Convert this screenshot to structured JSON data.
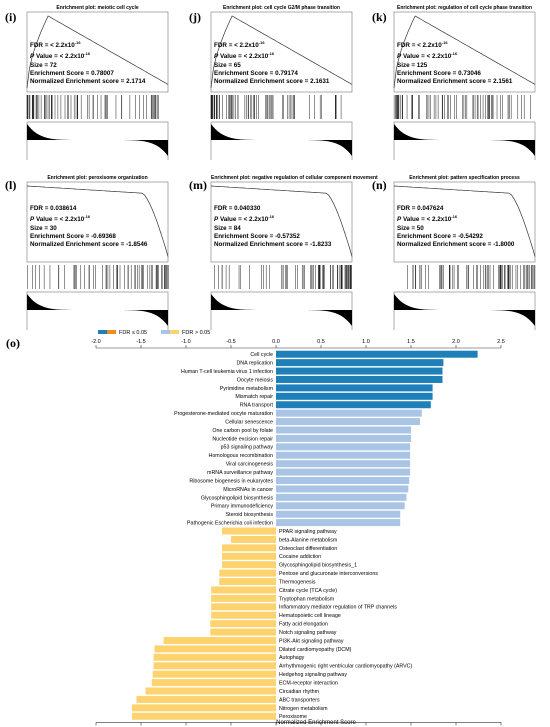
{
  "panels": [
    {
      "label": "(i)",
      "title": "Enrichment plot: meiotic cell cycle",
      "fdr": "< 2.2x10",
      "fdr_exp": "-16",
      "pv": "< 2.2x10",
      "pv_exp": "-16",
      "size": "72",
      "es": "0.78007",
      "nes": "2.1714",
      "dir": "pos"
    },
    {
      "label": "(j)",
      "title": "Enrichment plot: cell cycle G2/M phase transition",
      "fdr": "< 2.2x10",
      "fdr_exp": "-16",
      "pv": "< 2.2x10",
      "pv_exp": "-16",
      "size": "65",
      "es": "0.79174",
      "nes": "2.1631",
      "dir": "pos"
    },
    {
      "label": "(k)",
      "title": "Enrichment plot: regulation of cell cycle phase transition",
      "fdr": "< 2.2x10",
      "fdr_exp": "-16",
      "pv": "< 2.2x10",
      "pv_exp": "-16",
      "size": "125",
      "es": "0.73046",
      "nes": "2.1561",
      "dir": "pos"
    },
    {
      "label": "(l)",
      "title": "Enrichment plot: peroxisome organization",
      "fdr": "0.038614",
      "fdr_exp": "",
      "pv": "< 2.2x10",
      "pv_exp": "-16",
      "size": "30",
      "es": "-0.69368",
      "nes": "-1.8546",
      "dir": "neg"
    },
    {
      "label": "(m)",
      "title": "Enrichment plot: negative regulation of cellular component movement",
      "fdr": "0.040330",
      "fdr_exp": "",
      "pv": "< 2.2x10",
      "pv_exp": "-16",
      "size": "84",
      "es": "-0.57352",
      "nes": "-1.8233",
      "dir": "neg"
    },
    {
      "label": "(n)",
      "title": "Enrichment plot: pattern specification process",
      "fdr": "0.047624",
      "fdr_exp": "",
      "pv": "< 2.2x10",
      "pv_exp": "-16",
      "size": "50",
      "es": "-0.54292",
      "nes": "-1.8000",
      "dir": "neg"
    }
  ],
  "stat_labels": {
    "fdr": "FDR = ",
    "pv": " Value = ",
    "pv_italic": "P",
    "size": "Size = ",
    "es": "Enrichment Score = ",
    "nes": "Normalized Enrichment score = "
  },
  "chart_label": "(o)",
  "colors": {
    "up_dark": "#1f7fb8",
    "up_light": "#a9c4e4",
    "down_dark": "#f28a1c",
    "down_light": "#fcd36e"
  },
  "chart_data": {
    "type": "bar",
    "orientation": "horizontal",
    "xlabel": "Normalized Enrichment Score",
    "xlim": [
      -2.0,
      2.5
    ],
    "xticks": [
      "-2.0",
      "-1.5",
      "-1.0",
      "-0.5",
      "0.0",
      "0.5",
      "1.0",
      "1.5",
      "2.0",
      "2.5"
    ],
    "legend": [
      {
        "name": "FDR ≤ 0.05",
        "swatches": [
          "#1f7fb8",
          "#f28a1c"
        ]
      },
      {
        "name": "FDR > 0.05",
        "swatches": [
          "#a9c4e4",
          "#fcd36e"
        ]
      }
    ],
    "legend_position": "top-left",
    "categories": [
      "Cell cycle",
      "DNA replication",
      "Human T-cell leukemia virus 1 infection",
      "Oocyte meiosis",
      "Pyrimidine metabolism",
      "Mismatch repair",
      "RNA transport",
      "Progesterone-mediated oocyte maturation",
      "Cellular senescence",
      "One carbon pool by folate",
      "Nucleotide excision repair",
      "p53 signaling pathway",
      "Homologous recombination",
      "Viral carcinogenesis",
      "mRNA surveillance pathway",
      "Ribosome biogenesis in eukaryotes",
      "MicroRNAs in cancer",
      "Glycosphingolipid biosynthesis",
      "Primary immunodeficiency",
      "Steroid biosynthesis",
      "Pathogenic Escherichia coli infection",
      "PPAR signaling pathway",
      "beta-Alanine metabolism",
      "Osteoclast differentiation",
      "Cocaine addiction",
      "Glycosphingolipid biosynthesis_1",
      "Pentose and glucuronate interconversions",
      "Thermogenesis",
      "Citrate cycle (TCA cycle)",
      "Tryptophan metabolism",
      "Inflammatory mediator regulation of TRP channels",
      "Hematopoietic cell lineage",
      "Fatty acid elongation",
      "Notch signaling pathway",
      "PI3K-Akt signaling pathway",
      "Dilated cardiomyopathy (DCM)",
      "Autophagy",
      "Arrhythmogenic right ventricular cardiomyopathy (ARVC)",
      "Hedgehog signaling pathway",
      "ECM-receptor interaction",
      "Circadian rhythm",
      "ABC transporters",
      "Nitrogen metabolism",
      "Peroxisome"
    ],
    "values": [
      2.24,
      1.86,
      1.85,
      1.85,
      1.74,
      1.74,
      1.72,
      1.62,
      1.6,
      1.5,
      1.5,
      1.49,
      1.49,
      1.49,
      1.49,
      1.48,
      1.47,
      1.45,
      1.43,
      1.38,
      1.38,
      -0.6,
      -0.5,
      -0.6,
      -0.6,
      -0.6,
      -0.63,
      -0.63,
      -0.72,
      -0.72,
      -0.72,
      -0.72,
      -0.73,
      -0.73,
      -1.25,
      -1.35,
      -1.36,
      -1.36,
      -1.37,
      -1.38,
      -1.45,
      -1.55,
      -1.6,
      -1.6
    ],
    "fdr_significant": [
      true,
      true,
      true,
      true,
      true,
      true,
      true,
      false,
      false,
      false,
      false,
      false,
      false,
      false,
      false,
      false,
      false,
      false,
      false,
      false,
      false,
      false,
      false,
      false,
      false,
      false,
      false,
      false,
      false,
      false,
      false,
      false,
      false,
      false,
      false,
      false,
      false,
      false,
      false,
      false,
      false,
      false,
      false,
      false
    ]
  }
}
